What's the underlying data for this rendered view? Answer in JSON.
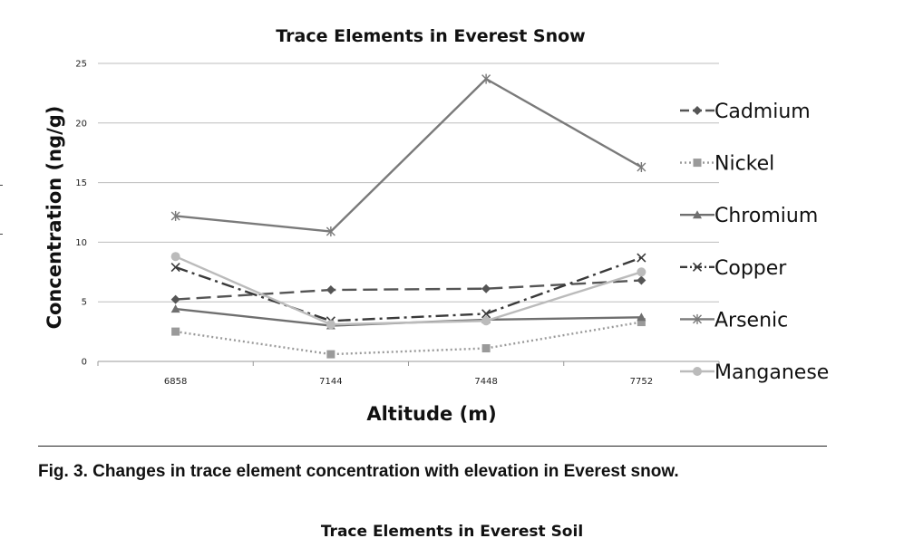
{
  "chart_data": {
    "type": "line",
    "title": "Trace Elements in Everest Snow",
    "xlabel": "Altitude (m)",
    "ylabel": "Concentration (ng/g)",
    "categories": [
      "6858",
      "7144",
      "7448",
      "7752"
    ],
    "ylim": [
      0,
      25
    ],
    "yticks": [
      "0",
      "5",
      "10",
      "15",
      "20",
      "25"
    ],
    "grid": true,
    "legend_position": "right",
    "series": [
      {
        "name": "Cadmium",
        "values": [
          5.2,
          6.0,
          6.1,
          6.8
        ],
        "color": "#555555",
        "dash": "16,7",
        "marker": "diamond"
      },
      {
        "name": "Nickel",
        "values": [
          2.5,
          0.6,
          1.1,
          3.3
        ],
        "color": "#9a9a9a",
        "dash": "2,3",
        "marker": "square"
      },
      {
        "name": "Chromium",
        "values": [
          4.4,
          3.0,
          3.5,
          3.7
        ],
        "color": "#6f6f6f",
        "dash": "",
        "marker": "triangle"
      },
      {
        "name": "Copper",
        "values": [
          7.9,
          3.4,
          4.0,
          8.7
        ],
        "color": "#3a3a3a",
        "dash": "14,5,3,5",
        "marker": "x"
      },
      {
        "name": "Arsenic",
        "values": [
          12.2,
          10.9,
          23.7,
          16.3
        ],
        "color": "#7a7a7a",
        "dash": "",
        "marker": "star"
      },
      {
        "name": "Manganese",
        "values": [
          8.8,
          3.1,
          3.4,
          7.5
        ],
        "color": "#bbbbbb",
        "dash": "",
        "marker": "circle"
      }
    ]
  },
  "caption": "Fig. 3. Changes in trace element concentration with elevation in Everest snow.",
  "next_figure_title": "Trace Elements in Everest Soil"
}
